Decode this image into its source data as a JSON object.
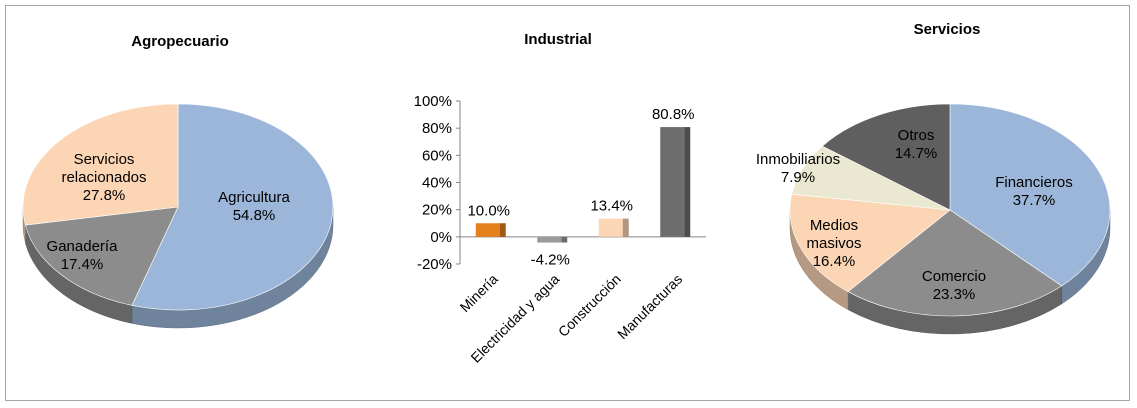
{
  "chart_data": [
    {
      "type": "pie",
      "title": "Agropecuario",
      "slices": [
        {
          "label": "Agricultura",
          "value": 54.8,
          "value_label": "54.8%",
          "color": "#9cb6d9"
        },
        {
          "label": "Ganadería",
          "value": 17.4,
          "value_label": "17.4%",
          "color": "#8c8c8c"
        },
        {
          "label": "Servicios relacionados",
          "label_lines": [
            "Servicios",
            "relacionados"
          ],
          "value": 27.8,
          "value_label": "27.8%",
          "color": "#fcd5b5"
        }
      ]
    },
    {
      "type": "bar",
      "title": "Industrial",
      "categories": [
        "Minería",
        "Electricidad y agua",
        "Construcción",
        "Manufacturas"
      ],
      "values": [
        10.0,
        -4.2,
        13.4,
        80.8
      ],
      "value_labels": [
        "10.0%",
        "-4.2%",
        "13.4%",
        "80.8%"
      ],
      "colors": [
        "#e5801c",
        "#9a9a9a",
        "#fcd5b5",
        "#6d6d6d"
      ],
      "ylim": [
        -20,
        100
      ],
      "yticks": [
        "100%",
        "80%",
        "60%",
        "40%",
        "20%",
        "0%",
        "-20%"
      ],
      "ytick_values": [
        100,
        80,
        60,
        40,
        20,
        0,
        -20
      ]
    },
    {
      "type": "pie",
      "title": "Servicios",
      "slices": [
        {
          "label": "Financieros",
          "value": 37.7,
          "value_label": "37.7%",
          "color": "#9cb6d9"
        },
        {
          "label": "Comercio",
          "value": 23.3,
          "value_label": "23.3%",
          "color": "#8c8c8c"
        },
        {
          "label": "Medios masivos",
          "label_lines": [
            "Medios",
            "masivos"
          ],
          "value": 16.4,
          "value_label": "16.4%",
          "color": "#fcd5b5"
        },
        {
          "label": "Inmobiliarios",
          "value": 7.9,
          "value_label": "7.9%",
          "color": "#ebe8d2"
        },
        {
          "label": "Otros",
          "value": 14.7,
          "value_label": "14.7%",
          "color": "#5f5f5f"
        }
      ]
    }
  ]
}
